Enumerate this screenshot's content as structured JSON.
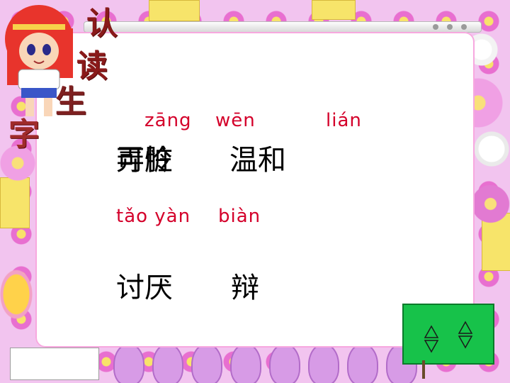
{
  "title_chars": [
    "认",
    "读",
    "生",
    "字"
  ],
  "words": [
    {
      "pinyin": "zāng",
      "hanzi": "弄脏"
    },
    {
      "pinyin": "wēn",
      "hanzi": "温和"
    },
    {
      "pinyin": "lián",
      "hanzi": "可怜"
    },
    {
      "pinyin": "tǎo yàn",
      "hanzi": "讨厌"
    },
    {
      "pinyin": "biàn",
      "hanzi": "辩"
    }
  ],
  "nav": {
    "prev_icon": "arrow-up-down-icon",
    "next_icon": "arrow-up-down-icon"
  },
  "colors": {
    "pinyin": "#d4002a",
    "title": "#8a1a1a",
    "flag": "#17c24a"
  }
}
